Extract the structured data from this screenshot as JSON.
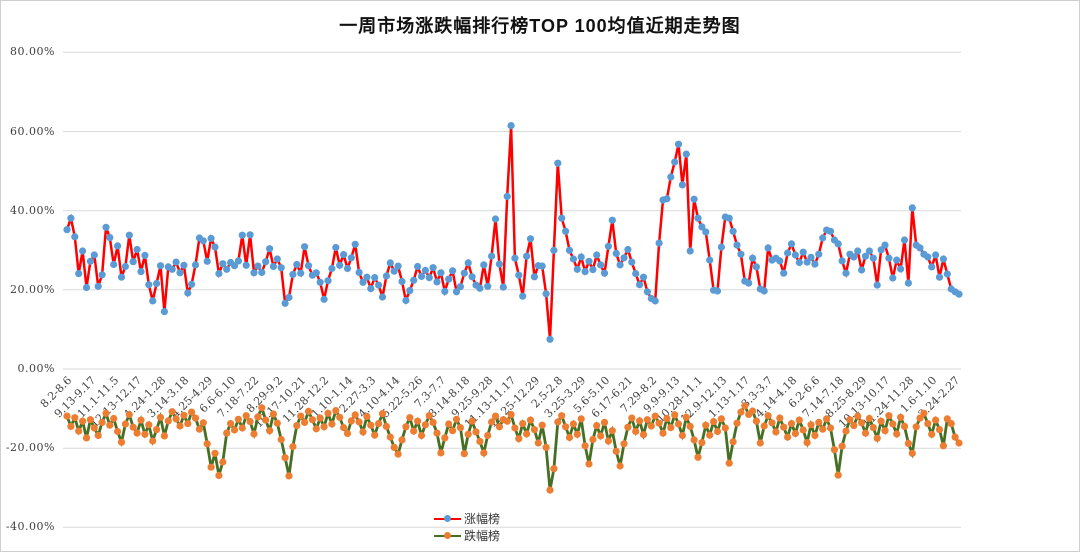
{
  "chart_data": {
    "type": "line",
    "title": "一周市场涨跌幅排行榜TOP 100均值近期走势图",
    "grid": "horizontal",
    "y_axis": {
      "unit": "%",
      "min": -40,
      "max": 80,
      "tick_values": [
        80,
        60,
        40,
        20,
        0,
        -20,
        -40
      ],
      "tick_labels": [
        "80.00%",
        "60.00%",
        "40.00%",
        "20.00%",
        "0.00%",
        "-20.00%",
        "-40.00%"
      ]
    },
    "x_axis": {
      "label_every_n_points": 6,
      "tick_labels": [
        "8.2-8.6",
        "9.13-9.17",
        "11.1-11.5",
        "12.13-12.17",
        "1.24-1.28",
        "3.14-3.18",
        "4.25-4.29",
        "6.6-6.10",
        "7.18-7.22",
        "8.29-9.2",
        "10.17-10.21",
        "11.28-12.2",
        "1.10-1.14",
        "2.27-3.3",
        "4.10-4.14",
        "5.22-5.26",
        "7.3-7.7",
        "8.14-8.18",
        "9.25-9.28",
        "11.13-11.17",
        "12.25-12.29",
        "2.5-2.8",
        "3.25-3.29",
        "5.6-5.10",
        "6.17-6.21",
        "7.29-8.2",
        "9.9-9.13",
        "10.28-11.1",
        "12.9-12.13",
        "1.13-1.17",
        "3.3-3.7",
        "4.14-4.18",
        "6.2-6.6",
        "7.14-7.18",
        "8.25-8.29",
        "10.13-10.17",
        "11.24-11.28",
        "1.6-1.10",
        "2.24-2.27"
      ]
    },
    "legend": {
      "position": "bottom-center"
    },
    "series": [
      {
        "name": "涨幅榜",
        "line_color": "#FF0000",
        "marker_color": "#5B9BD5",
        "unit": "%",
        "values": [
          35.2,
          38.1,
          33.4,
          24.1,
          29.8,
          20.6,
          27.2,
          28.8,
          20.9,
          23.8,
          35.8,
          33.2,
          26.4,
          31.1,
          23.2,
          25.9,
          33.8,
          27.1,
          30.2,
          24.6,
          28.7,
          21.3,
          17.2,
          21.6,
          26.1,
          14.5,
          25.8,
          25.2,
          27.0,
          24.3,
          26.2,
          19.2,
          21.4,
          26.3,
          33.1,
          32.4,
          27.2,
          33.0,
          30.8,
          24.1,
          26.6,
          25.2,
          26.9,
          26.1,
          27.3,
          33.8,
          26.2,
          33.9,
          24.3,
          26.0,
          24.4,
          27.1,
          30.4,
          25.9,
          27.8,
          25.6,
          16.6,
          18.1,
          23.9,
          26.4,
          24.2,
          30.9,
          26.1,
          23.7,
          24.3,
          21.9,
          17.6,
          22.3,
          25.4,
          30.7,
          26.2,
          28.9,
          25.4,
          28.1,
          31.5,
          24.4,
          21.9,
          23.2,
          20.3,
          23.1,
          21.2,
          18.2,
          23.5,
          26.8,
          24.7,
          26.0,
          22.1,
          17.3,
          19.8,
          22.4,
          25.9,
          23.4,
          24.9,
          23.1,
          25.6,
          22.0,
          24.3,
          19.6,
          22.7,
          24.8,
          19.5,
          20.8,
          24.2,
          26.8,
          23.3,
          21.2,
          20.4,
          26.3,
          20.9,
          28.5,
          37.9,
          26.5,
          20.7,
          43.6,
          61.5,
          28.0,
          23.7,
          18.4,
          28.5,
          32.9,
          23.3,
          26.1,
          26.0,
          19.0,
          7.5,
          30.0,
          52.0,
          38.1,
          34.8,
          30.0,
          27.8,
          25.2,
          28.3,
          24.6,
          27.2,
          25.1,
          28.8,
          26.3,
          24.2,
          31.0,
          37.6,
          29.2,
          26.3,
          28.1,
          30.2,
          27.0,
          24.1,
          21.3,
          23.2,
          19.5,
          17.8,
          17.2,
          31.8,
          42.7,
          43.0,
          48.5,
          52.3,
          56.8,
          46.5,
          54.3,
          29.8,
          42.9,
          38.1,
          35.9,
          34.6,
          27.5,
          19.9,
          19.7,
          30.8,
          38.4,
          38.1,
          34.8,
          31.3,
          29.0,
          22.2,
          21.7,
          28.0,
          25.8,
          20.2,
          19.7,
          30.6,
          27.5,
          28.0,
          27.3,
          24.2,
          29.3,
          31.6,
          28.8,
          26.9,
          29.5,
          27.0,
          28.2,
          26.5,
          29.0,
          33.1,
          35.1,
          34.8,
          32.6,
          31.6,
          27.3,
          24.2,
          29.0,
          28.3,
          29.8,
          25.0,
          28.5,
          29.8,
          28.0,
          21.2,
          30.1,
          31.3,
          28.0,
          23.0,
          27.5,
          25.3,
          32.6,
          21.7,
          40.7,
          31.3,
          30.6,
          29.0,
          28.3,
          25.8,
          28.8,
          23.2,
          27.8,
          24.0,
          20.2,
          19.5,
          18.9
        ]
      },
      {
        "name": "跌幅榜",
        "line_color": "#456F22",
        "marker_color": "#ED7D31",
        "unit": "%",
        "values": [
          -11.9,
          -14.5,
          -12.3,
          -15.7,
          -13.2,
          -17.4,
          -12.8,
          -14.9,
          -16.8,
          -13.5,
          -11.2,
          -14.2,
          -12.5,
          -15.8,
          -18.5,
          -13.9,
          -11.5,
          -14.7,
          -16.2,
          -12.9,
          -16.5,
          -14.1,
          -18.2,
          -15.3,
          -12.2,
          -16.9,
          -13.1,
          -10.8,
          -12.6,
          -14.4,
          -11.7,
          -13.8,
          -10.9,
          -12.4,
          -15.2,
          -13.6,
          -18.9,
          -24.8,
          -21.3,
          -26.9,
          -23.5,
          -16.2,
          -13.8,
          -15.4,
          -12.7,
          -14.9,
          -11.8,
          -13.3,
          -16.4,
          -12.1,
          -9.8,
          -12.9,
          -15.6,
          -11.4,
          -13.7,
          -17.8,
          -22.4,
          -27.0,
          -19.6,
          -14.3,
          -11.9,
          -13.5,
          -10.7,
          -12.8,
          -15.1,
          -12.4,
          -14.6,
          -11.2,
          -13.9,
          -10.5,
          -12.2,
          -14.8,
          -16.3,
          -13.1,
          -11.6,
          -13.4,
          -15.9,
          -12.0,
          -14.2,
          -16.7,
          -13.8,
          -11.3,
          -14.5,
          -17.2,
          -19.8,
          -21.5,
          -17.9,
          -14.6,
          -12.3,
          -15.7,
          -13.2,
          -16.8,
          -14.1,
          -11.8,
          -13.5,
          -16.2,
          -21.2,
          -17.4,
          -13.9,
          -15.6,
          -12.7,
          -14.8,
          -21.4,
          -16.5,
          -13.2,
          -15.9,
          -18.3,
          -21.2,
          -16.8,
          -13.4,
          -11.9,
          -14.6,
          -12.8,
          -13.2,
          -11.5,
          -14.9,
          -17.6,
          -13.8,
          -16.4,
          -12.9,
          -15.3,
          -18.7,
          -14.2,
          -19.8,
          -30.6,
          -25.2,
          -13.4,
          -11.8,
          -14.6,
          -17.3,
          -13.9,
          -16.5,
          -12.6,
          -19.4,
          -24.0,
          -17.8,
          -14.3,
          -16.9,
          -13.5,
          -18.2,
          -15.6,
          -20.8,
          -24.5,
          -18.9,
          -14.7,
          -12.4,
          -15.8,
          -13.1,
          -16.6,
          -12.8,
          -14.4,
          -11.9,
          -13.7,
          -16.2,
          -12.5,
          -14.8,
          -11.6,
          -13.9,
          -16.8,
          -12.2,
          -14.5,
          -17.9,
          -22.3,
          -18.6,
          -14.2,
          -16.7,
          -13.3,
          -15.8,
          -12.6,
          -14.9,
          -23.8,
          -18.4,
          -13.7,
          -10.9,
          -9.3,
          -11.5,
          -10.6,
          -13.2,
          -18.7,
          -14.4,
          -11.8,
          -13.6,
          -15.9,
          -12.4,
          -14.7,
          -17.2,
          -13.8,
          -16.3,
          -12.9,
          -15.4,
          -18.6,
          -14.1,
          -16.8,
          -13.5,
          -15.2,
          -12.6,
          -14.9,
          -20.4,
          -26.8,
          -19.5,
          -15.7,
          -12.8,
          -14.3,
          -11.9,
          -13.6,
          -16.2,
          -12.5,
          -14.8,
          -17.5,
          -13.2,
          -15.6,
          -11.8,
          -13.9,
          -16.4,
          -12.2,
          -14.5,
          -18.8,
          -21.3,
          -14.6,
          -12.4,
          -11.2,
          -13.8,
          -16.5,
          -12.9,
          -15.3,
          -19.4,
          -12.6,
          -13.8,
          -17.2,
          -18.7
        ]
      }
    ],
    "style": {
      "grid_color": "#D9D9D9",
      "background": "#FFFFFF",
      "line_width": 2.5,
      "marker_radius": 3.6
    }
  }
}
